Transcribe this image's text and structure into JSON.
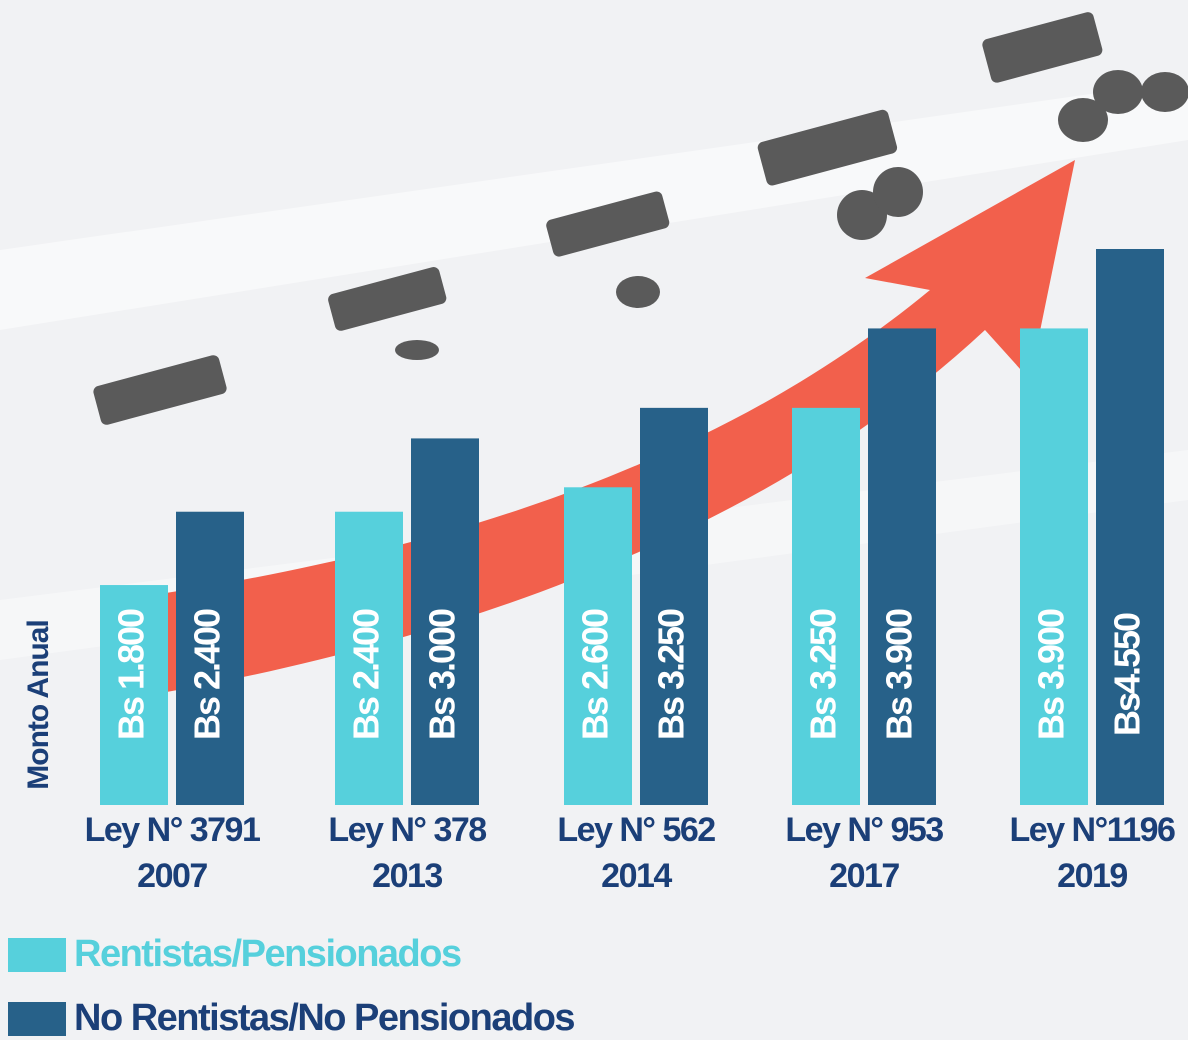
{
  "chart_data": {
    "type": "bar",
    "y_label": "Monto Anual",
    "categories": [
      [
        "Ley N° 3791",
        "2007"
      ],
      [
        "Ley N° 378",
        "2013"
      ],
      [
        "Ley N° 562",
        "2014"
      ],
      [
        "Ley N° 953",
        "2017"
      ],
      [
        "Ley N°1196",
        "2019"
      ]
    ],
    "series": [
      {
        "name": "Rentistas/Pensionados",
        "color": "#56d0dc",
        "values": [
          1800,
          2400,
          2600,
          3250,
          3900
        ],
        "value_labels": [
          "Bs 1.800",
          "Bs 2.400",
          "Bs 2.600",
          "Bs 3.250",
          "Bs 3.900"
        ]
      },
      {
        "name": "No Rentistas/No Pensionados",
        "color": "#276189",
        "values": [
          2400,
          3000,
          3250,
          3900,
          4550
        ],
        "value_labels": [
          "Bs 2.400",
          "Bs 3.000",
          "Bs 3.250",
          "Bs 3.900",
          "Bs4.550"
        ]
      }
    ]
  }
}
